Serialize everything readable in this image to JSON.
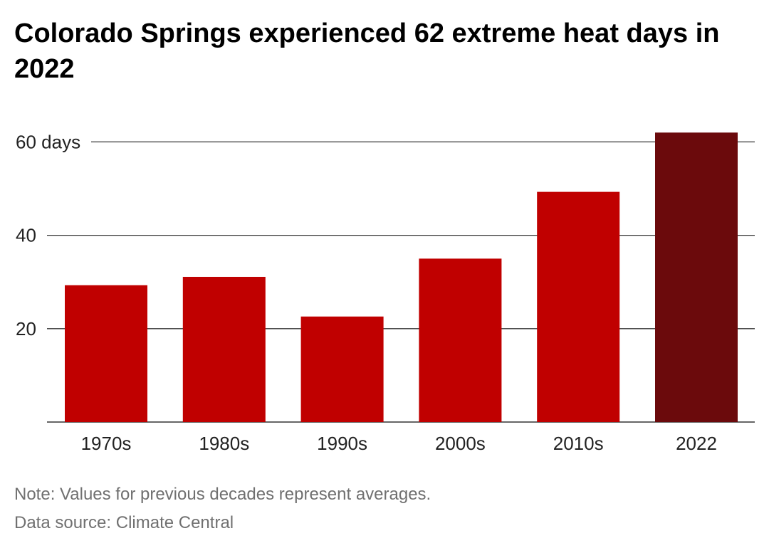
{
  "title": "Colorado Springs experienced 62 extreme heat days in 2022",
  "note": "Note: Values for previous decades represent averages.",
  "source": "Data source: Climate Central",
  "colors": {
    "decade_bar": "#c00000",
    "highlight_bar": "#6b0a0c",
    "gridline": "#333333",
    "tick_text": "#222222"
  },
  "chart_data": {
    "type": "bar",
    "title": "Colorado Springs experienced 62 extreme heat days in 2022",
    "xlabel": "",
    "ylabel": "",
    "categories": [
      "1970s",
      "1980s",
      "1990s",
      "2000s",
      "2010s",
      "2022"
    ],
    "values": [
      29.3,
      31.1,
      22.6,
      35.0,
      49.3,
      62
    ],
    "ylim": [
      0,
      60
    ],
    "y_ticks": [
      {
        "value": 20,
        "label": "20"
      },
      {
        "value": 40,
        "label": "40"
      },
      {
        "value": 60,
        "label": "60 days"
      }
    ],
    "highlight_category": "2022",
    "grid": true,
    "legend": "none"
  }
}
